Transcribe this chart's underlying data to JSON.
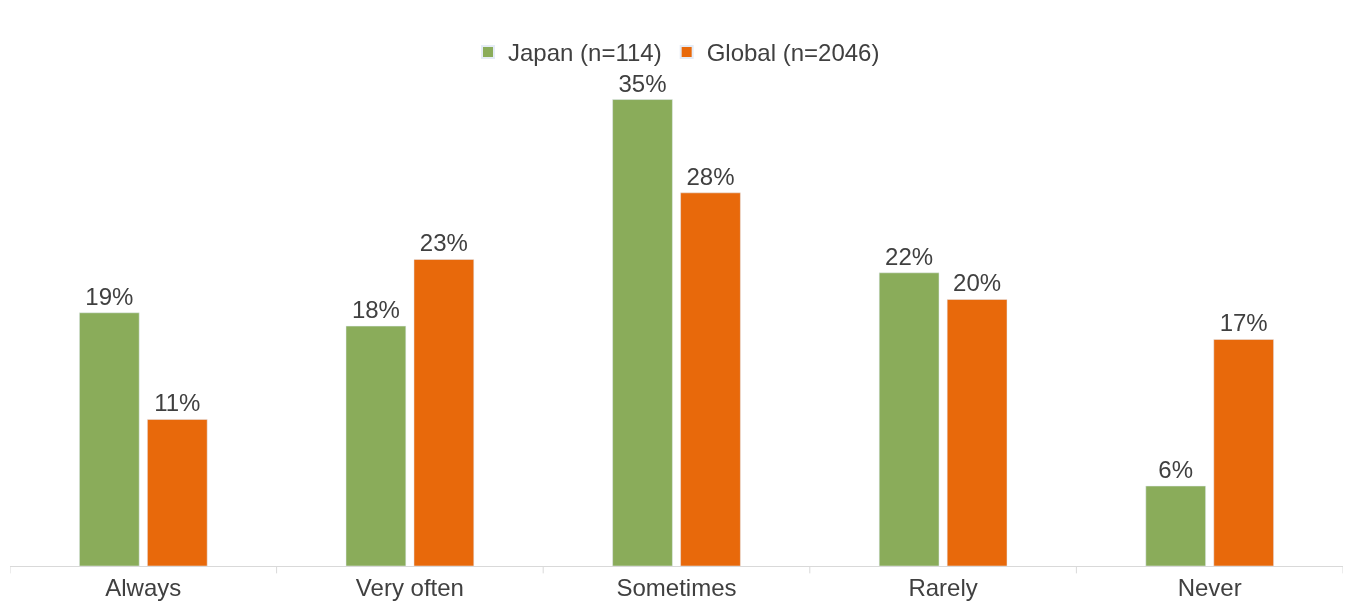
{
  "chart_data": {
    "type": "bar",
    "categories": [
      "Always",
      "Very often",
      "Sometimes",
      "Rarely",
      "Never"
    ],
    "series": [
      {
        "name": "Japan (n=114)",
        "color": "#8aac5a",
        "values": [
          19,
          18,
          35,
          22,
          6
        ],
        "value_labels": [
          "19%",
          "18%",
          "35%",
          "22%",
          "6%"
        ]
      },
      {
        "name": "Global (n=2046)",
        "color": "#e8690b",
        "values": [
          11,
          23,
          28,
          20,
          17
        ],
        "value_labels": [
          "11%",
          "23%",
          "28%",
          "20%",
          "17%"
        ]
      }
    ],
    "legend": "top",
    "tick_labels": "x"
  }
}
